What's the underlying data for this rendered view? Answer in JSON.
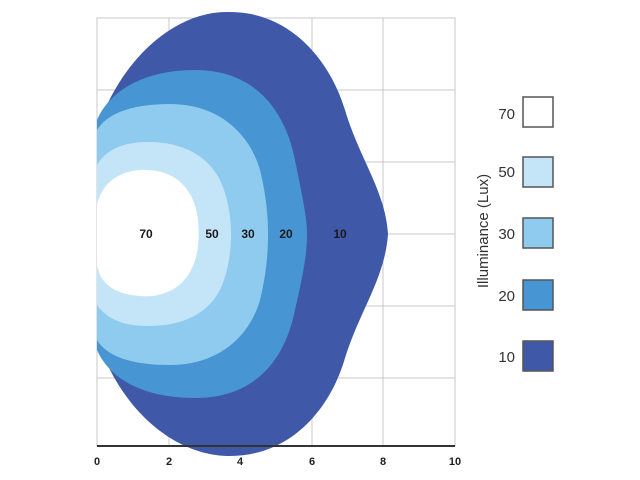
{
  "chart_data": {
    "type": "contour",
    "xlim": [
      0,
      10
    ],
    "x_ticks": [
      "0",
      "2",
      "4",
      "6",
      "8",
      "10"
    ],
    "levels": [
      {
        "value": 10,
        "label": "10",
        "color": "#3f58a8",
        "reach_x": 8.1
      },
      {
        "value": 20,
        "label": "20",
        "color": "#4795d2",
        "reach_x": 5.9
      },
      {
        "value": 30,
        "label": "30",
        "color": "#8fcbef",
        "reach_x": 4.7
      },
      {
        "value": 50,
        "label": "50",
        "color": "#c4e5f8",
        "reach_x": 3.6
      },
      {
        "value": 70,
        "label": "70",
        "color": "#ffffff",
        "reach_x": 2.7
      }
    ],
    "zone_labels": [
      "70",
      "50",
      "30",
      "20",
      "10"
    ],
    "legend": {
      "title": "Illuminance (Lux)",
      "placement": "right",
      "entries": [
        {
          "label": "70",
          "color": "#ffffff"
        },
        {
          "label": "50",
          "color": "#c4e5f8"
        },
        {
          "label": "30",
          "color": "#8fcbef"
        },
        {
          "label": "20",
          "color": "#4795d2"
        },
        {
          "label": "10",
          "color": "#3f58a8"
        }
      ]
    },
    "grid": true
  }
}
